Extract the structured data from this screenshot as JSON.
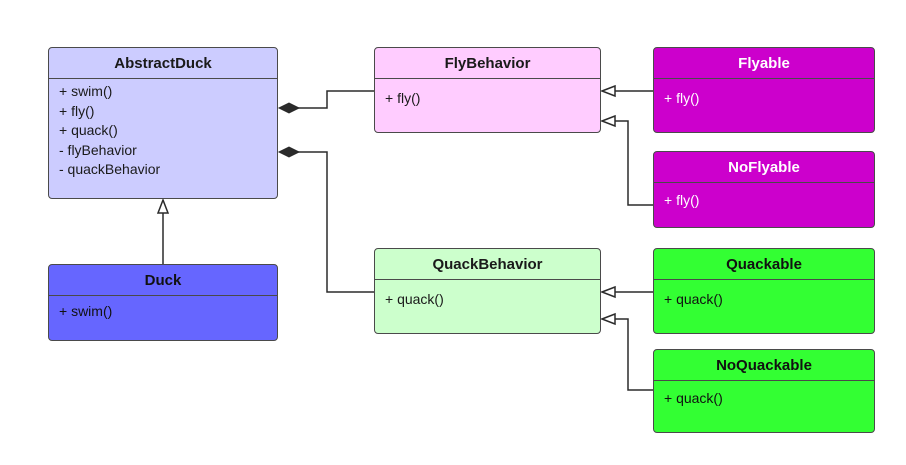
{
  "classes": {
    "abstract_duck": {
      "name": "AbstractDuck",
      "members": [
        "+ swim()",
        "+ fly()",
        "+ quack()",
        "- flyBehavior",
        "- quackBehavior"
      ],
      "fill": "#ccccff"
    },
    "duck": {
      "name": "Duck",
      "members": [
        "+ swim()"
      ],
      "fill": "#6666ff"
    },
    "fly_behavior": {
      "name": "FlyBehavior",
      "members": [
        "+ fly()"
      ],
      "fill": "#ffccff"
    },
    "quack_behavior": {
      "name": "QuackBehavior",
      "members": [
        "+ quack()"
      ],
      "fill": "#ccffcc"
    },
    "flyable": {
      "name": "Flyable",
      "members": [
        "+ fly()"
      ],
      "fill": "#cc00cc"
    },
    "noflyable": {
      "name": "NoFlyable",
      "members": [
        "+ fly()"
      ],
      "fill": "#cc00cc"
    },
    "quackable": {
      "name": "Quackable",
      "members": [
        "+ quack()"
      ],
      "fill": "#33ff33"
    },
    "noquackable": {
      "name": "NoQuackable",
      "members": [
        "+ quack()"
      ],
      "fill": "#33ff33"
    }
  },
  "relations": [
    {
      "type": "composition",
      "from": "AbstractDuck",
      "to": "FlyBehavior"
    },
    {
      "type": "composition",
      "from": "AbstractDuck",
      "to": "QuackBehavior"
    },
    {
      "type": "generalization",
      "from": "Duck",
      "to": "AbstractDuck"
    },
    {
      "type": "realization",
      "from": "Flyable",
      "to": "FlyBehavior"
    },
    {
      "type": "realization",
      "from": "NoFlyable",
      "to": "FlyBehavior"
    },
    {
      "type": "realization",
      "from": "Quackable",
      "to": "QuackBehavior"
    },
    {
      "type": "realization",
      "from": "NoQuackable",
      "to": "QuackBehavior"
    }
  ],
  "colors": {
    "line": "#2b2b2b",
    "border": "#4a4a4a"
  }
}
